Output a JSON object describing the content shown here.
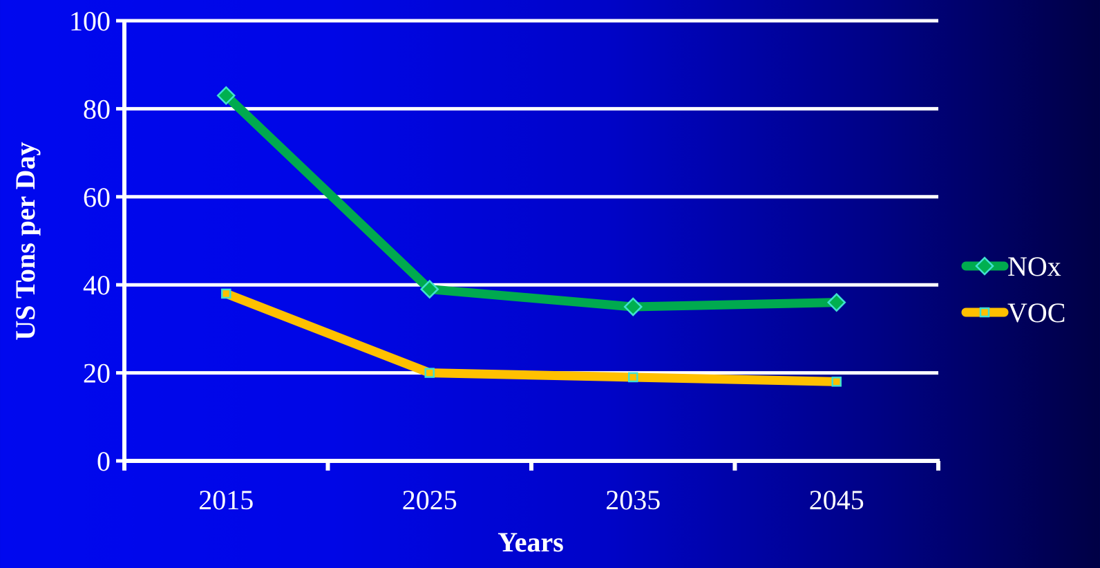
{
  "chart_data": {
    "type": "line",
    "categories": [
      "2015",
      "2025",
      "2035",
      "2045"
    ],
    "series": [
      {
        "name": "NOx",
        "values": [
          83,
          39,
          35,
          36
        ],
        "color": "#00aa4f",
        "marker": "diamond",
        "marker_color": "#00b050",
        "marker_edge": "#40e0d0"
      },
      {
        "name": "VOC",
        "values": [
          38,
          20,
          19,
          18
        ],
        "color": "#ffc000",
        "marker": "square",
        "marker_color": "#ffc000",
        "marker_edge": "#40e0d0"
      }
    ],
    "xlabel": "Years",
    "ylabel": "US Tons per Day",
    "ylim": [
      0,
      100
    ],
    "yticks": [
      0,
      20,
      40,
      60,
      80,
      100
    ],
    "grid": true,
    "legend_position": "right"
  },
  "colors": {
    "axis": "#ffffff",
    "grid": "#ffffff",
    "text": "#ffffff"
  }
}
